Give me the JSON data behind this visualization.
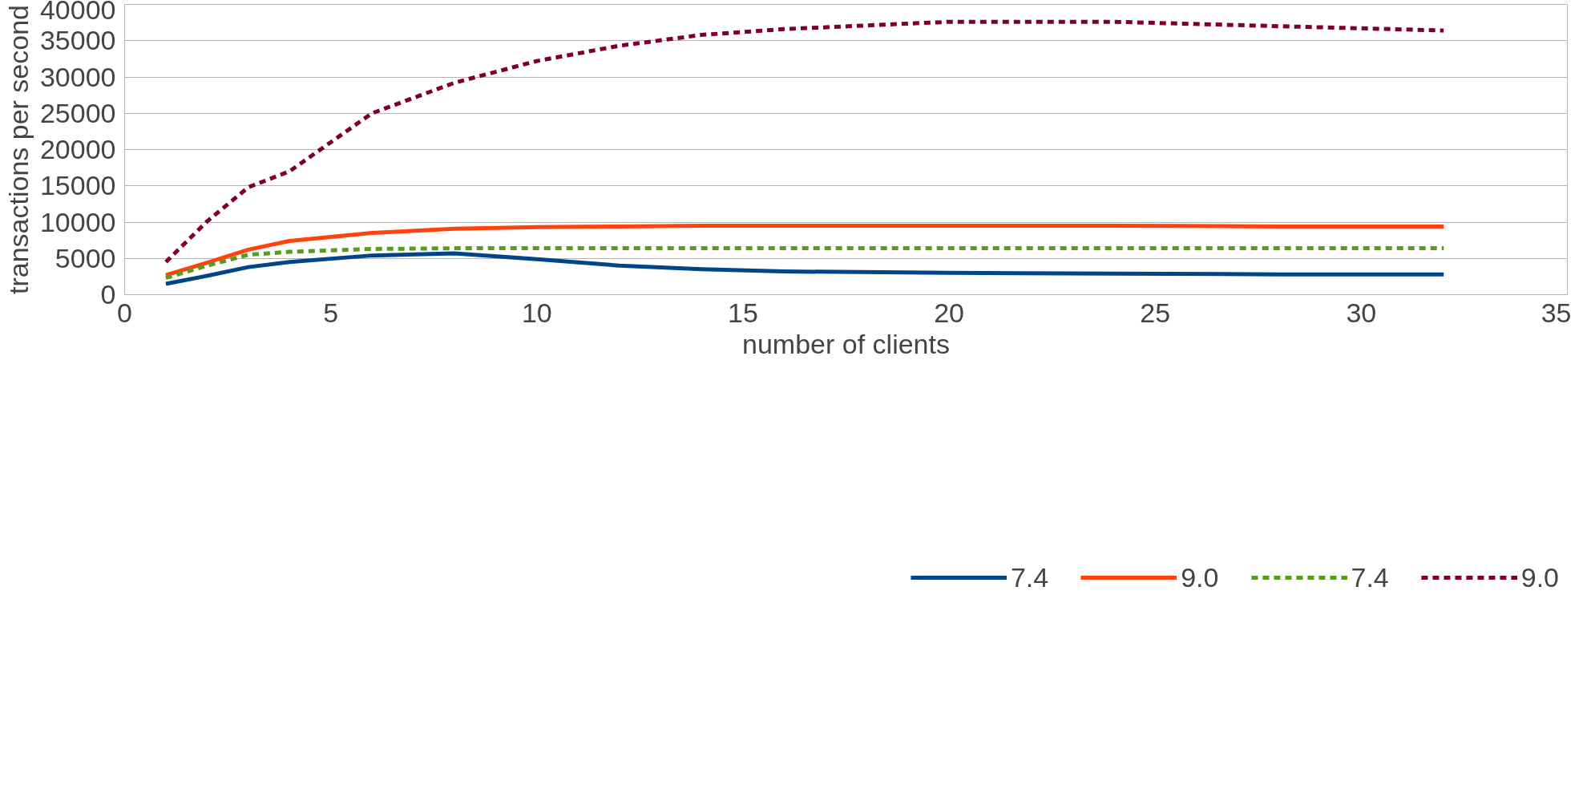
{
  "chart_data": {
    "type": "line",
    "xlabel": "number of clients",
    "ylabel": "transactions per second",
    "x": [
      1,
      2,
      3,
      4,
      6,
      8,
      10,
      12,
      14,
      16,
      20,
      24,
      28,
      32
    ],
    "series": [
      {
        "name": "7.4",
        "color": "#004586",
        "line_style": "solid",
        "values": [
          1500,
          2600,
          3800,
          4500,
          5400,
          5700,
          4900,
          4000,
          3500,
          3200,
          3000,
          2900,
          2800,
          2800
        ]
      },
      {
        "name": "9.0",
        "color": "#ff420e",
        "line_style": "solid",
        "values": [
          2700,
          4400,
          6200,
          7400,
          8500,
          9100,
          9300,
          9400,
          9500,
          9500,
          9500,
          9500,
          9400,
          9400
        ]
      },
      {
        "name": "7.4",
        "color": "#579d1c",
        "line_style": "dashed",
        "values": [
          2300,
          4000,
          5500,
          5900,
          6300,
          6400,
          6400,
          6400,
          6400,
          6400,
          6400,
          6400,
          6400,
          6400
        ]
      },
      {
        "name": "9.0",
        "color": "#7e0021",
        "line_style": "dashed",
        "values": [
          4500,
          10100,
          14800,
          17000,
          25000,
          29200,
          32200,
          34300,
          35800,
          36600,
          37600,
          37600,
          37000,
          36400
        ]
      }
    ],
    "xlim": [
      0,
      35
    ],
    "xticks": [
      0,
      5,
      10,
      15,
      20,
      25,
      30,
      35
    ],
    "ylim": [
      0,
      40000
    ],
    "yticks": [
      0,
      5000,
      10000,
      15000,
      20000,
      25000,
      30000,
      35000,
      40000
    ],
    "grid": "y",
    "legend": "bottom",
    "marker": "none"
  }
}
